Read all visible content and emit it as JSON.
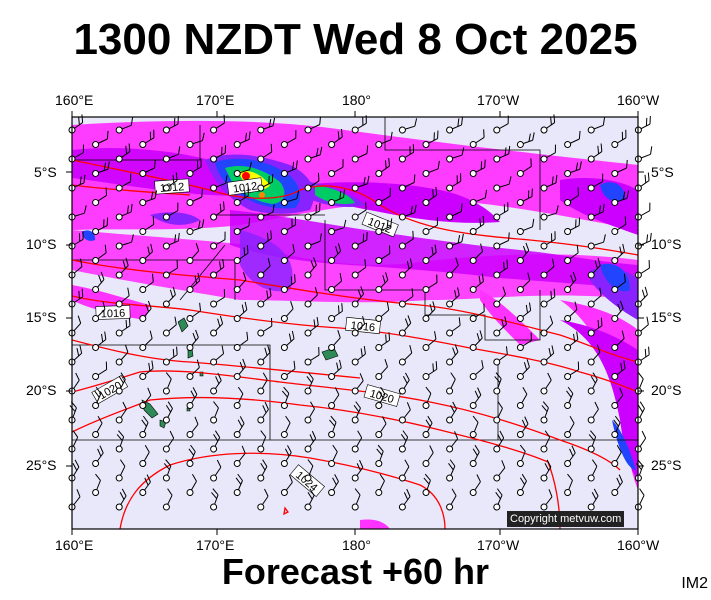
{
  "title": "1300 NZDT Wed 8 Oct 2025",
  "subtitle": "Forecast +60 hr",
  "image_code": "IM2",
  "copyright": "Copyright metvuw.com",
  "longitude_labels": [
    "160°E",
    "170°E",
    "180°",
    "170°W",
    "160°W"
  ],
  "latitude_labels": [
    "5°S",
    "10°S",
    "15°S",
    "20°S",
    "25°S"
  ],
  "isobar_labels": [
    "1012",
    "1012",
    "1012",
    "1016",
    "1016",
    "1020",
    "1020",
    "1024"
  ],
  "colors": {
    "ocean": "#e8e8fa",
    "rain_light": "#ff33ff",
    "rain_medium": "#cc00ff",
    "rain_heavy": "#8822ff",
    "rain_blue": "#2244ff",
    "rain_green": "#00cc66",
    "isobar": "#ff0000"
  }
}
